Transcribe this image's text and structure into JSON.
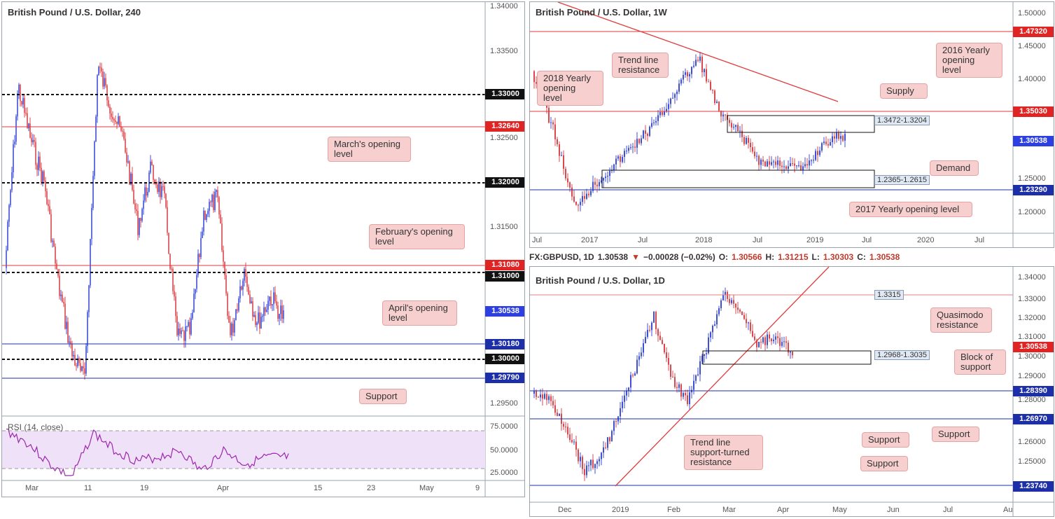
{
  "panels": {
    "h4": {
      "title": "British Pound / U.S. Dollar, 240",
      "rsi_label": "RSI (14, close)",
      "price_axis": [
        "1.34000",
        "1.33500",
        "1.32500",
        "1.31500",
        "1.29500"
      ],
      "rsi_axis": [
        "75.0000",
        "50.0000",
        "25.0000"
      ],
      "time_axis": [
        "Mar",
        "11",
        "19",
        "Apr",
        "15",
        "23",
        "May",
        "9"
      ],
      "tags": [
        {
          "text": "1.33000",
          "style": "black"
        },
        {
          "text": "1.32640",
          "style": "red"
        },
        {
          "text": "1.32000",
          "style": "black"
        },
        {
          "text": "1.31080",
          "style": "red"
        },
        {
          "text": "1.31000",
          "style": "black"
        },
        {
          "text": "1.30538",
          "style": "blue"
        },
        {
          "text": "1.30180",
          "style": "navy"
        },
        {
          "text": "1.30000",
          "style": "black"
        },
        {
          "text": "1.29790",
          "style": "navy"
        }
      ],
      "notes": {
        "march": "March's opening\nlevel",
        "february": "February's opening\nlevel",
        "april": "April's opening\nlevel",
        "support": "Support"
      }
    },
    "w1": {
      "title": "British Pound / U.S. Dollar, 1W",
      "price_axis": [
        "1.50000",
        "1.45000",
        "1.40000",
        "1.25000",
        "1.20000"
      ],
      "time_axis": [
        "Jul",
        "2017",
        "Jul",
        "2018",
        "Jul",
        "2019",
        "Jul",
        "2020",
        "Jul"
      ],
      "tags": [
        {
          "text": "1.47320",
          "style": "red"
        },
        {
          "text": "1.35030",
          "style": "red"
        },
        {
          "text": "1.30538",
          "style": "blue"
        },
        {
          "text": "1.23290",
          "style": "navy"
        }
      ],
      "zone_labels": [
        "1.3472-1.3204",
        "1.2365-1.2615"
      ],
      "notes": {
        "trend": "Trend line\nresistance",
        "y2018": "2018 Yearly\nopening\nlevel",
        "y2016": "2016 Yearly\nopening\nlevel",
        "supply": "Supply",
        "demand": "Demand",
        "y2017": "2017 Yearly opening level"
      }
    },
    "d1": {
      "title": "British Pound / U.S. Dollar, 1D",
      "info": {
        "symbol": "FX:GBPUSD, 1D",
        "last": "1.30538",
        "change": "−0.00028 (−0.02%)",
        "o_label": "O:",
        "o": "1.30566",
        "h_label": "H:",
        "h": "1.31215",
        "l_label": "L:",
        "l": "1.30303",
        "c_label": "C:",
        "c": "1.30538"
      },
      "price_axis": [
        "1.34000",
        "1.33000",
        "1.32000",
        "1.31000",
        "1.30000",
        "1.29000",
        "1.28000",
        "1.26000",
        "1.25000"
      ],
      "time_axis": [
        "Dec",
        "2019",
        "Feb",
        "Mar",
        "Apr",
        "May",
        "Jun",
        "Jul",
        "Au"
      ],
      "tags": [
        {
          "text": "1.30538",
          "style": "red"
        },
        {
          "text": "1.28390",
          "style": "navy"
        },
        {
          "text": "1.26970",
          "style": "navy"
        },
        {
          "text": "1.23740",
          "style": "navy"
        }
      ],
      "zone_labels": [
        "1.3315",
        "1.2968-1.3035"
      ],
      "notes": {
        "quasimodo": "Quasimodo\nresistance",
        "block": "Block of\nsupport",
        "trend": "Trend line\nsupport-turned\nresistance",
        "support1": "Support",
        "support2": "Support",
        "support3": "Support"
      }
    }
  },
  "colors": {
    "bull": "#3d4fd6",
    "bear": "#d9484e",
    "hline_red": "#e03a3a",
    "hline_navy": "#1d2fa8",
    "rsi": "#9c27b0"
  }
}
